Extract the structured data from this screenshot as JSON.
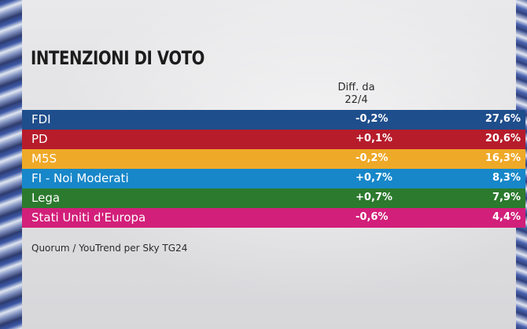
{
  "title": "INTENZIONI DI VOTO",
  "column_header": "Diff. da 22/4",
  "source": "Quorum / YouTrend per Sky TG24",
  "chart_data": {
    "type": "table",
    "title": "INTENZIONI DI VOTO",
    "columns": [
      "",
      "Diff. da 22/4",
      ""
    ],
    "rows": [
      {
        "party": "FDI",
        "diff": "-0,2%",
        "value": "27,6%",
        "color": "#1f4e8c"
      },
      {
        "party": "PD",
        "diff": "+0,1%",
        "value": "20,6%",
        "color": "#b71c2b"
      },
      {
        "party": "M5S",
        "diff": "-0,2%",
        "value": "16,3%",
        "color": "#efa928"
      },
      {
        "party": "FI - Noi Moderati",
        "diff": "+0,7%",
        "value": "8,3%",
        "color": "#1787c9"
      },
      {
        "party": "Lega",
        "diff": "+0,7%",
        "value": "7,9%",
        "color": "#2c7a2e"
      },
      {
        "party": "Stati Uniti d'Europa",
        "diff": "-0,6%",
        "value": "4,4%",
        "color": "#d21f7a"
      }
    ]
  }
}
